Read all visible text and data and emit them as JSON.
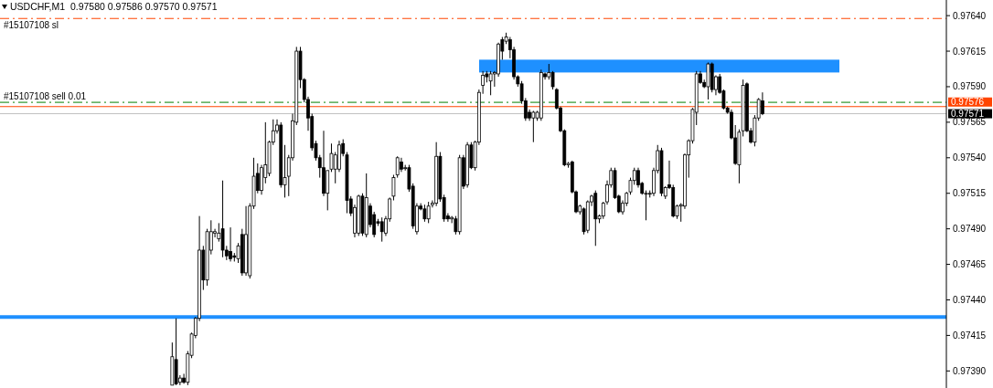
{
  "chart_data": {
    "type": "candlestick",
    "title": "USDCHF,M1  0.97580 0.97586 0.97570 0.97571",
    "categories": [
      null,
      null,
      null,
      null,
      null,
      null,
      null,
      null,
      null,
      null,
      null,
      null,
      null,
      null,
      null,
      null,
      null,
      null,
      null,
      null,
      null,
      null,
      null,
      null,
      null,
      null,
      null,
      null,
      null,
      null,
      null,
      null,
      null,
      null,
      null,
      null,
      null,
      null,
      null,
      null,
      null,
      null,
      null,
      null,
      null,
      null,
      null,
      null,
      null,
      null,
      null,
      null,
      null,
      null,
      null,
      null,
      null,
      null,
      null,
      null,
      null,
      null,
      null,
      null,
      null,
      null,
      null,
      null,
      null,
      null,
      null,
      null,
      null,
      null,
      null,
      null,
      null,
      null,
      null,
      null,
      null,
      null,
      null,
      null,
      null,
      null,
      null,
      null,
      null,
      null,
      null,
      null,
      null,
      null,
      null,
      null,
      null,
      null,
      null,
      null,
      null,
      null,
      null,
      null,
      null,
      null,
      null,
      null,
      null,
      null,
      null,
      null,
      null,
      null,
      null,
      null,
      null,
      null,
      null,
      null,
      null,
      null,
      null,
      null,
      null,
      null,
      null,
      null,
      null,
      null,
      null,
      null,
      null,
      null,
      null,
      null,
      null,
      null,
      null,
      null,
      null,
      null,
      null,
      null,
      null,
      null,
      null,
      null,
      null,
      null,
      null,
      null,
      null,
      null,
      null,
      null,
      null,
      null,
      null,
      null,
      null,
      null,
      null,
      null,
      null,
      null,
      null,
      null,
      null,
      null,
      null,
      null,
      null,
      null,
      null,
      null,
      null,
      null,
      null,
      null,
      null,
      null,
      null,
      null,
      null,
      null,
      null,
      null,
      null,
      null,
      null,
      null,
      null,
      null,
      null,
      null,
      null,
      null,
      null,
      null,
      null,
      null,
      null,
      null,
      null,
      null,
      null,
      null,
      null,
      null,
      null,
      null,
      null,
      null,
      null,
      null,
      null,
      null,
      null,
      null,
      null,
      null,
      null,
      null,
      null,
      null,
      null,
      null,
      null,
      null,
      null,
      null,
      null,
      null,
      null,
      null,
      null,
      null,
      null,
      null,
      null,
      null,
      null,
      null
    ],
    "ohlc": [
      null,
      null,
      null,
      null,
      null,
      null,
      null,
      null,
      null,
      null,
      null,
      null,
      null,
      null,
      null,
      null,
      null,
      null,
      null,
      null,
      null,
      null,
      null,
      null,
      null,
      null,
      null,
      null,
      null,
      null,
      null,
      null,
      null,
      null,
      null,
      null,
      null,
      null,
      null,
      null,
      null,
      null,
      null,
      null,
      [
        0.9738,
        0.9741,
        0.9738,
        0.974
      ],
      [
        0.97398,
        0.97427,
        0.9738,
        0.97381
      ],
      [
        0.97382,
        0.97387,
        0.9738,
        0.97385
      ],
      [
        0.97385,
        0.97388,
        0.97381,
        0.97382
      ],
      [
        0.97382,
        0.97404,
        0.9738,
        0.97402
      ],
      [
        0.97401,
        0.97417,
        0.97399,
        0.97416
      ],
      [
        0.97415,
        0.97428,
        0.97413,
        0.97427
      ],
      [
        0.97427,
        0.97499,
        0.97425,
        0.97475
      ],
      [
        0.97475,
        0.97478,
        0.97447,
        0.97454
      ],
      [
        0.97454,
        0.9749,
        0.9745,
        0.97488
      ],
      [
        0.97475,
        0.97496,
        0.97472,
        0.97488
      ],
      [
        0.97487,
        0.9749,
        0.97484,
        0.97488
      ],
      [
        0.97483,
        0.97494,
        0.97481,
        0.97487
      ],
      [
        0.9749,
        0.97524,
        0.9747,
        0.97475
      ],
      [
        0.97475,
        0.97478,
        0.97468,
        0.97471
      ],
      [
        0.97474,
        0.97491,
        0.97467,
        0.97469
      ],
      [
        0.97471,
        0.97473,
        0.97467,
        0.9747
      ],
      [
        0.97469,
        0.9748,
        0.97466,
        0.97478
      ],
      [
        0.97486,
        0.9749,
        0.97457,
        0.97459
      ],
      [
        0.97459,
        0.97506,
        0.97457,
        0.97486
      ],
      [
        0.97457,
        0.97508,
        0.97455,
        0.97506
      ],
      [
        0.97506,
        0.9754,
        0.97504,
        0.97527
      ],
      [
        0.97529,
        0.97536,
        0.97515,
        0.97517
      ],
      [
        0.97517,
        0.97535,
        0.97514,
        0.97533
      ],
      [
        0.97526,
        0.97565,
        0.97522,
        0.97535
      ],
      [
        0.97529,
        0.97552,
        0.97527,
        0.97551
      ],
      [
        0.97551,
        0.97567,
        0.97549,
        0.97559
      ],
      [
        0.97559,
        0.97567,
        0.97557,
        0.97563
      ],
      [
        0.97563,
        0.97565,
        0.97519,
        0.97521
      ],
      [
        0.97521,
        0.97549,
        0.97512,
        0.97526
      ],
      [
        0.97527,
        0.97542,
        0.97513,
        0.9754
      ],
      [
        0.9754,
        0.97571,
        0.97538,
        0.97566
      ],
      [
        0.97565,
        0.97618,
        0.97563,
        0.97615
      ],
      [
        0.97615,
        0.97618,
        0.97589,
        0.97595
      ],
      [
        0.97595,
        0.97596,
        0.97579,
        0.97581
      ],
      [
        0.97581,
        0.97583,
        0.97559,
        0.97568
      ],
      [
        0.97569,
        0.97571,
        0.97545,
        0.97547
      ],
      [
        0.9755,
        0.97552,
        0.97538,
        0.9754
      ],
      [
        0.9754,
        0.97542,
        0.97526,
        0.97533
      ],
      [
        0.97533,
        0.97559,
        0.97513,
        0.97515
      ],
      [
        0.97515,
        0.97531,
        0.97503,
        0.97531
      ],
      [
        0.97532,
        0.9755,
        0.9753,
        0.97543
      ],
      [
        0.97532,
        0.97544,
        0.97522,
        0.97542
      ],
      [
        0.97532,
        0.97552,
        0.9753,
        0.97549
      ],
      [
        0.9755,
        0.97553,
        0.97541,
        0.97543
      ],
      [
        0.97542,
        0.97544,
        0.97501,
        0.9751
      ],
      [
        0.97511,
        0.97513,
        0.97499,
        0.97501
      ],
      [
        0.97487,
        0.97507,
        0.97484,
        0.97505
      ],
      [
        0.97487,
        0.97514,
        0.97485,
        0.97513
      ],
      [
        0.97513,
        0.97515,
        0.97485,
        0.97487
      ],
      [
        0.97486,
        0.97529,
        0.97484,
        0.97512
      ],
      [
        0.97506,
        0.97508,
        0.97491,
        0.97493
      ],
      [
        0.975,
        0.97502,
        0.97484,
        0.97486
      ],
      [
        0.97495,
        0.97497,
        0.97492,
        0.97494
      ],
      [
        0.97495,
        0.97498,
        0.97481,
        0.97488
      ],
      [
        0.97487,
        0.97499,
        0.97485,
        0.97497
      ],
      [
        0.97497,
        0.97512,
        0.97495,
        0.97511
      ],
      [
        0.97513,
        0.97528,
        0.9751,
        0.97526
      ],
      [
        0.97528,
        0.97541,
        0.97526,
        0.9754
      ],
      [
        0.97537,
        0.9754,
        0.9753,
        0.97532
      ],
      [
        0.97533,
        0.97535,
        0.97531,
        0.97533
      ],
      [
        0.97533,
        0.97535,
        0.97516,
        0.97518
      ],
      [
        0.9752,
        0.97522,
        0.9749,
        0.97492
      ],
      [
        0.97488,
        0.97508,
        0.97486,
        0.97506
      ],
      [
        0.97506,
        0.97508,
        0.97503,
        0.97504
      ],
      [
        0.97504,
        0.97507,
        0.97495,
        0.97497
      ],
      [
        0.97497,
        0.97509,
        0.97494,
        0.97506
      ],
      [
        0.97507,
        0.9751,
        0.97505,
        0.97508
      ],
      [
        0.97508,
        0.97551,
        0.97506,
        0.97541
      ],
      [
        0.97541,
        0.97544,
        0.97509,
        0.97511
      ],
      [
        0.97512,
        0.97514,
        0.97495,
        0.97497
      ],
      [
        0.97499,
        0.97501,
        0.97495,
        0.97497
      ],
      [
        0.97497,
        0.97499,
        0.97494,
        0.97498
      ],
      [
        0.97497,
        0.97499,
        0.97486,
        0.97488
      ],
      [
        0.97488,
        0.97542,
        0.97486,
        0.9754
      ],
      [
        0.9754,
        0.97542,
        0.97518,
        0.9752
      ],
      [
        0.97521,
        0.97551,
        0.97519,
        0.97549
      ],
      [
        0.97549,
        0.97551,
        0.97532,
        0.97533
      ],
      [
        0.97533,
        0.97552,
        0.97531,
        0.97551
      ],
      [
        0.97551,
        0.97588,
        0.97549,
        0.97586
      ],
      [
        0.97591,
        0.97601,
        0.97585,
        0.97598
      ],
      [
        0.97599,
        0.97601,
        0.97593,
        0.97597
      ],
      [
        0.97594,
        0.97601,
        0.97584,
        0.97599
      ],
      [
        0.97599,
        0.97601,
        0.9759,
        0.976
      ],
      [
        0.97599,
        0.97621,
        0.97597,
        0.9762
      ],
      [
        0.97623,
        0.97625,
        0.97609,
        0.97615
      ],
      [
        0.97622,
        0.97628,
        0.9762,
        0.97625
      ],
      [
        0.97623,
        0.97625,
        0.9761,
        0.97616
      ],
      [
        0.97616,
        0.97618,
        0.97595,
        0.97597
      ],
      [
        0.97597,
        0.97598,
        0.9759,
        0.97592
      ],
      [
        0.97592,
        0.97594,
        0.97578,
        0.9758
      ],
      [
        0.9758,
        0.97582,
        0.97566,
        0.97568
      ],
      [
        0.97572,
        0.97574,
        0.97566,
        0.97568
      ],
      [
        0.97568,
        0.97573,
        0.97551,
        0.97572
      ],
      [
        0.97568,
        0.97573,
        0.97566,
        0.97572
      ],
      [
        0.97568,
        0.97602,
        0.97566,
        0.976
      ],
      [
        0.97599,
        0.976,
        0.97595,
        0.97597
      ],
      [
        0.97597,
        0.97606,
        0.97595,
        0.976
      ],
      [
        0.976,
        0.97601,
        0.97588,
        0.9759
      ],
      [
        0.97588,
        0.97589,
        0.97574,
        0.97575
      ],
      [
        0.97575,
        0.97576,
        0.97558,
        0.97559
      ],
      [
        0.97559,
        0.9756,
        0.97534,
        0.97535
      ],
      [
        0.97535,
        0.97537,
        0.97533,
        0.97536
      ],
      [
        0.97537,
        0.97538,
        0.97515,
        0.97516
      ],
      [
        0.97516,
        0.97517,
        0.97501,
        0.97502
      ],
      [
        0.97502,
        0.97507,
        0.975,
        0.97506
      ],
      [
        0.97504,
        0.97505,
        0.97486,
        0.97488
      ],
      [
        0.97489,
        0.9751,
        0.97487,
        0.97509
      ],
      [
        0.97509,
        0.97514,
        0.97506,
        0.97513
      ],
      [
        0.97515,
        0.97517,
        0.97478,
        0.97497
      ],
      [
        0.97497,
        0.975,
        0.97494,
        0.97499
      ],
      [
        0.97499,
        0.97509,
        0.97497,
        0.97508
      ],
      [
        0.97509,
        0.97524,
        0.97507,
        0.97521
      ],
      [
        0.97521,
        0.97533,
        0.97519,
        0.97531
      ],
      [
        0.97531,
        0.97533,
        0.97511,
        0.97512
      ],
      [
        0.97513,
        0.97514,
        0.97501,
        0.97502
      ],
      [
        0.97502,
        0.9751,
        0.975,
        0.97508
      ],
      [
        0.97508,
        0.97516,
        0.97506,
        0.97515
      ],
      [
        0.97516,
        0.97526,
        0.97514,
        0.97524
      ],
      [
        0.97524,
        0.97533,
        0.97521,
        0.97531
      ],
      [
        0.97531,
        0.97533,
        0.97519,
        0.97521
      ],
      [
        0.97522,
        0.97523,
        0.97514,
        0.97515
      ],
      [
        0.97515,
        0.97517,
        0.97496,
        0.97515
      ],
      [
        0.97515,
        0.97517,
        0.97512,
        0.97515
      ],
      [
        0.97515,
        0.97533,
        0.97513,
        0.97531
      ],
      [
        0.97531,
        0.97549,
        0.97529,
        0.97545
      ],
      [
        0.97545,
        0.97547,
        0.97513,
        0.97515
      ],
      [
        0.97513,
        0.9752,
        0.97511,
        0.97519
      ],
      [
        0.97521,
        0.97538,
        0.97518,
        0.97519
      ],
      [
        0.97519,
        0.97521,
        0.97498,
        0.97499
      ],
      [
        0.97499,
        0.97507,
        0.97497,
        0.97506
      ],
      [
        0.97506,
        0.97508,
        0.97495,
        0.97507
      ],
      [
        0.97506,
        0.97543,
        0.97504,
        0.97542
      ],
      [
        0.97542,
        0.97553,
        0.97526,
        0.97552
      ],
      [
        0.97552,
        0.97575,
        0.9755,
        0.97574
      ],
      [
        0.97572,
        0.97601,
        0.97563,
        0.97599
      ],
      [
        0.97599,
        0.97601,
        0.97592,
        0.97593
      ],
      [
        0.97593,
        0.97595,
        0.97589,
        0.9759
      ],
      [
        0.9759,
        0.97607,
        0.97581,
        0.97606
      ],
      [
        0.97606,
        0.97607,
        0.97586,
        0.97588
      ],
      [
        0.97588,
        0.97598,
        0.97584,
        0.97597
      ],
      [
        0.97597,
        0.97599,
        0.97585,
        0.97586
      ],
      [
        0.97587,
        0.97588,
        0.97574,
        0.97575
      ],
      [
        0.97575,
        0.97576,
        0.97571,
        0.97572
      ],
      [
        0.97572,
        0.97574,
        0.97553,
        0.97554
      ],
      [
        0.97554,
        0.97563,
        0.97535,
        0.97536
      ],
      [
        0.97535,
        0.9756,
        0.97522,
        0.97558
      ],
      [
        0.97559,
        0.97595,
        0.97555,
        0.97591
      ],
      [
        0.97592,
        0.97593,
        0.97558,
        0.97559
      ],
      [
        0.97559,
        0.97561,
        0.9755,
        0.97551
      ],
      [
        0.97551,
        0.9757,
        0.97548,
        0.97568
      ],
      [
        0.97568,
        0.97582,
        0.97566,
        0.97581
      ],
      [
        0.9758,
        0.97586,
        0.9757,
        0.97571
      ],
      null,
      null,
      null,
      null,
      null,
      null,
      null,
      null,
      null,
      null,
      null,
      null,
      null,
      null,
      null,
      null,
      null,
      null,
      null,
      null,
      null,
      null,
      null,
      null,
      null,
      null,
      null,
      null,
      null,
      null,
      null,
      null,
      null,
      null,
      null,
      null,
      null,
      null,
      null,
      null,
      null,
      null,
      null,
      null,
      null,
      null,
      null
    ],
    "ylim": [
      0.97378,
      0.97651
    ],
    "yticks": [
      {
        "value": 0.9739,
        "label": "0.97390"
      },
      0.97415,
      {
        "value": 0.9744,
        "label": "0.97440"
      },
      0.97465,
      {
        "value": 0.9749,
        "label": "0.97490"
      },
      0.97515,
      {
        "value": 0.9754,
        "label": "0.97540"
      },
      0.97565,
      {
        "value": 0.9759,
        "label": "0.97590"
      },
      0.97615,
      {
        "value": 0.9764,
        "label": "0.97640"
      }
    ],
    "ref_lines": [
      {
        "axis": "y",
        "value": 0.97638,
        "label": "#15107108 sl",
        "color": "#ff4500",
        "line_style": "dashed"
      },
      {
        "axis": "y",
        "value": 0.97579,
        "label": "#15107108 sell 0.01",
        "color": "#008000",
        "line_style": "dashed"
      },
      {
        "axis": "y",
        "value": 0.97576,
        "label": "0.97576",
        "color": "#ff4500",
        "line_style": "solid"
      },
      {
        "axis": "y",
        "value": 0.97571,
        "label": "0.97571",
        "color": "#c0c0c0",
        "line_style": "solid"
      },
      {
        "axis": "y",
        "value": 0.97428,
        "color": "#1e90ff",
        "line_style": "solid"
      }
    ],
    "bands": [
      {
        "axis": "y",
        "from": 0.976,
        "to": 0.97609,
        "color": "#1e90ff"
      }
    ]
  }
}
